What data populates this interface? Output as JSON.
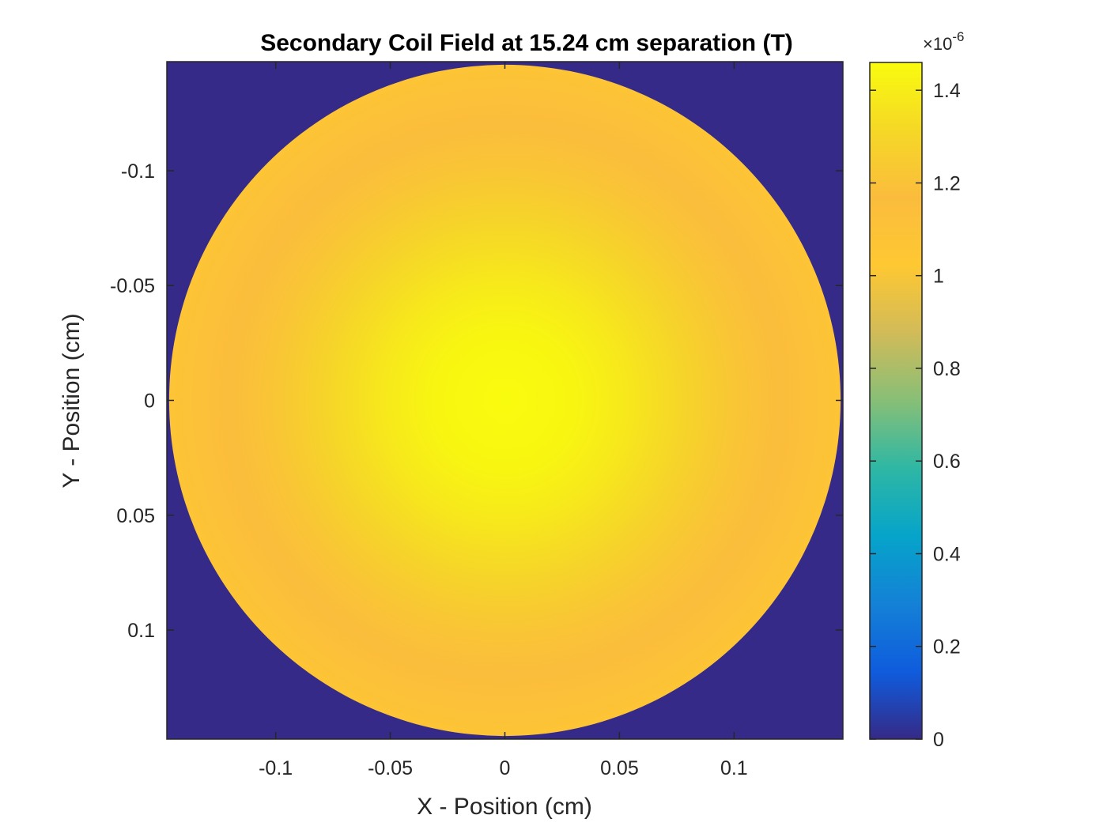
{
  "chart_data": {
    "type": "heatmap",
    "title": "Secondary Coil Field at 15.24 cm separation (T)",
    "xlabel": "X - Position (cm)",
    "ylabel": "Y - Position (cm)",
    "xlim": [
      -0.1475,
      0.1475
    ],
    "ylim": [
      -0.1475,
      0.1475
    ],
    "y_axis_reversed": true,
    "x_ticks": [
      -0.1,
      -0.05,
      0,
      0.05,
      0.1
    ],
    "x_tick_labels": [
      "-0.1",
      "-0.05",
      "0",
      "0.05",
      "0.1"
    ],
    "y_ticks": [
      -0.1,
      -0.05,
      0,
      0.05,
      0.1
    ],
    "y_tick_labels": [
      "-0.1",
      "-0.05",
      "0",
      "0.05",
      "0.1"
    ],
    "field_region": {
      "shape": "disc",
      "center": [
        0,
        0
      ],
      "radius": 0.1465,
      "value_outside": 0
    },
    "field_profile": [
      {
        "r": 0.0,
        "value": 1.46e-06
      },
      {
        "r": 0.03,
        "value": 1.44e-06
      },
      {
        "r": 0.05,
        "value": 1.39e-06
      },
      {
        "r": 0.08,
        "value": 1.29e-06
      },
      {
        "r": 0.1,
        "value": 1.22e-06
      },
      {
        "r": 0.12,
        "value": 1.15e-06
      },
      {
        "r": 0.1465,
        "value": 1.07e-06
      }
    ],
    "colorbar": {
      "colormap": "parula",
      "limits": [
        0,
        1.46e-06
      ],
      "ticks": [
        0,
        0.2,
        0.4,
        0.6,
        0.8,
        1,
        1.2,
        1.4
      ],
      "tick_labels": [
        "0",
        "0.2",
        "0.4",
        "0.6",
        "0.8",
        "1",
        "1.2",
        "1.4"
      ],
      "exponent_base": "×10",
      "exponent_power": "-6",
      "scale": 1e-06,
      "stops": [
        {
          "v": 0.0,
          "color": "#352a87"
        },
        {
          "v": 0.1,
          "color": "#0f5cdd"
        },
        {
          "v": 0.2,
          "color": "#1481d6"
        },
        {
          "v": 0.3,
          "color": "#06a4ca"
        },
        {
          "v": 0.4,
          "color": "#2eb7a4"
        },
        {
          "v": 0.5,
          "color": "#87bf77"
        },
        {
          "v": 0.6,
          "color": "#d1bb59"
        },
        {
          "v": 0.7,
          "color": "#fec832"
        },
        {
          "v": 0.8,
          "color": "#fbbc3d"
        },
        {
          "v": 0.9,
          "color": "#f5d826"
        },
        {
          "v": 1.0,
          "color": "#f9fb0e"
        }
      ]
    },
    "grid": false,
    "background_color": "#352a87"
  }
}
